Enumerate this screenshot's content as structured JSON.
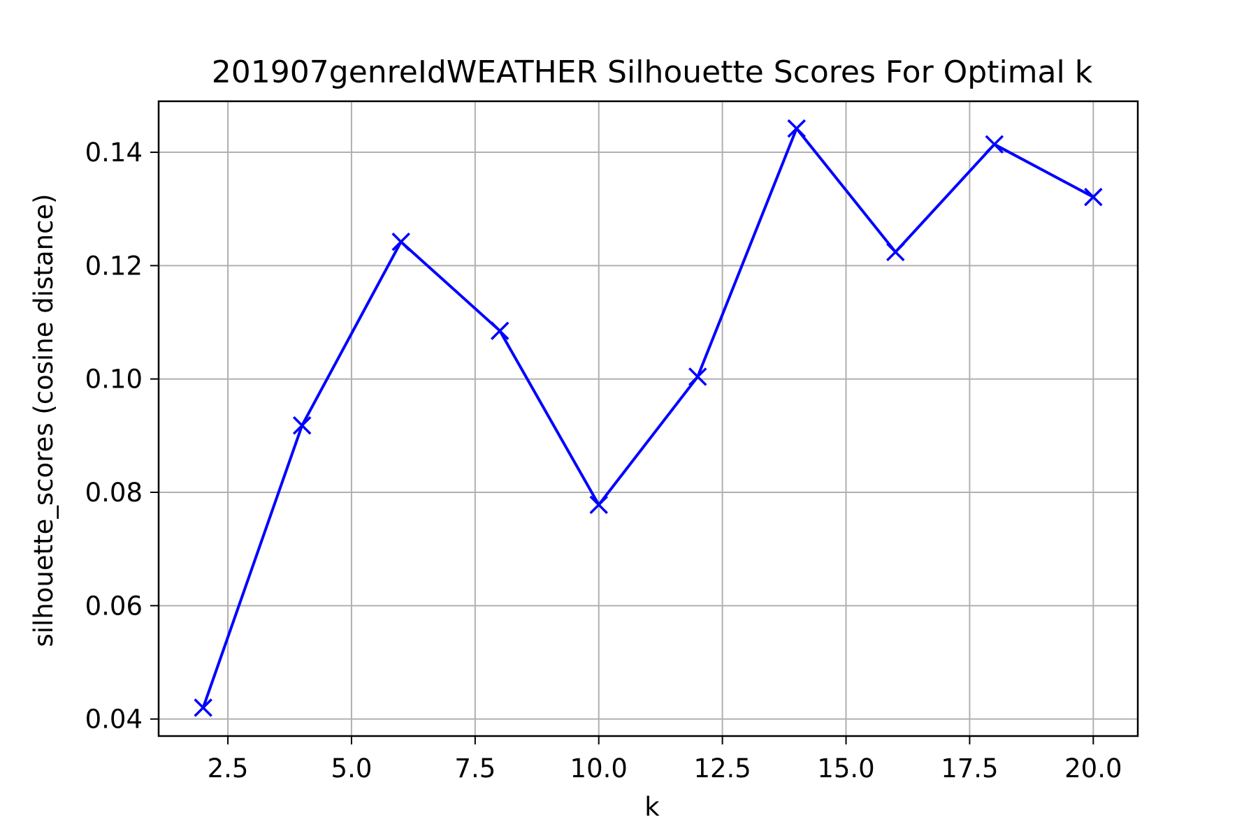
{
  "chart_data": {
    "type": "line",
    "title": "201907genreIdWEATHER Silhouette Scores For Optimal k",
    "xlabel": "k",
    "ylabel": "silhouette_scores (cosine distance)",
    "x": [
      2,
      4,
      6,
      8,
      10,
      12,
      14,
      16,
      18,
      20
    ],
    "series": [
      {
        "values": [
          0.042,
          0.0918,
          0.1242,
          0.1085,
          0.0778,
          0.1004,
          0.1442,
          0.1224,
          0.1414,
          0.1321
        ]
      }
    ],
    "marker": "x",
    "xlim": [
      1.1,
      20.9
    ],
    "ylim": [
      0.037,
      0.149
    ],
    "xticks": [
      2.5,
      5.0,
      7.5,
      10.0,
      12.5,
      15.0,
      17.5,
      20.0
    ],
    "xtick_labels": [
      "2.5",
      "5.0",
      "7.5",
      "10.0",
      "12.5",
      "15.0",
      "17.5",
      "20.0"
    ],
    "yticks": [
      0.04,
      0.06,
      0.08,
      0.1,
      0.12,
      0.14
    ],
    "ytick_labels": [
      "0.04",
      "0.06",
      "0.08",
      "0.10",
      "0.12",
      "0.14"
    ],
    "grid": true,
    "colors": {
      "line": "#0000ff",
      "grid": "#b0b0b0",
      "axes": "#000000"
    }
  }
}
